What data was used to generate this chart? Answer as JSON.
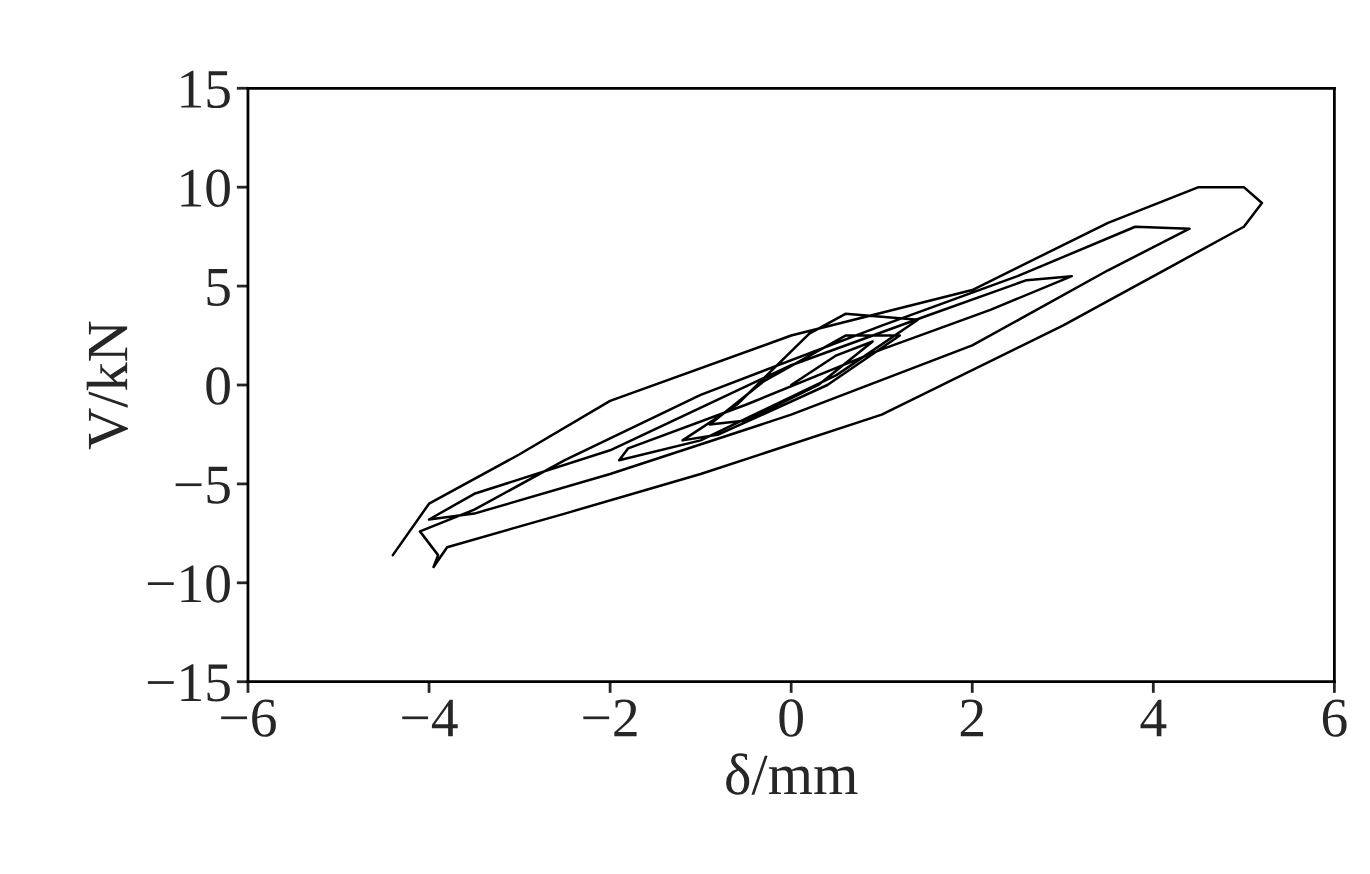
{
  "chart_data": {
    "type": "line",
    "xlabel": "δ/mm",
    "ylabel": "V/kN",
    "xlim": [
      -6,
      6
    ],
    "ylim": [
      -15,
      15
    ],
    "xticks": [
      -6,
      -4,
      -2,
      0,
      2,
      4,
      6
    ],
    "yticks": [
      -15,
      -10,
      -5,
      0,
      5,
      10,
      15
    ],
    "grid": false,
    "legend": false,
    "series": [
      {
        "color": "#000000",
        "x": [
          0,
          0.5,
          0.9,
          0.3,
          -0.5,
          -0.9,
          -0.3,
          0.6,
          1.2,
          0.4,
          -0.8,
          -1.2,
          -0.6,
          0.2,
          0.6,
          1.4,
          0.5,
          -1,
          -1.9,
          -1.8,
          -0.5,
          1,
          2.2,
          3.1,
          2.6,
          1.5,
          0,
          -2,
          -3.5,
          -4,
          -3.5,
          -2,
          0,
          2,
          3.5,
          4.4,
          3.8,
          2.5,
          1,
          -1,
          -2.5,
          -3.5,
          -4.1,
          -3.9,
          -3.95,
          -3.8,
          -2.5,
          -1,
          1,
          3,
          4.2,
          5,
          5.2,
          5,
          4.5,
          3.5,
          2,
          0,
          -2,
          -3,
          -4,
          -4.4
        ],
        "values": [
          0,
          1.5,
          2.2,
          0,
          -1.8,
          -2,
          0.2,
          2.5,
          2.5,
          0,
          -2.5,
          -2.8,
          -1,
          2.6,
          3.6,
          3.3,
          0.5,
          -2.8,
          -3.8,
          -3.2,
          -1,
          1.8,
          3.8,
          5.5,
          5.3,
          3.5,
          1,
          -3.3,
          -5.5,
          -6.8,
          -6.5,
          -4.5,
          -1.5,
          2,
          5.8,
          7.9,
          8,
          5.5,
          3,
          -0.5,
          -3.8,
          -6.3,
          -7.4,
          -8.6,
          -9.2,
          -8.2,
          -6.5,
          -4.5,
          -1.5,
          3,
          6,
          8,
          9.2,
          10,
          10,
          8.2,
          4.8,
          2.5,
          -0.8,
          -3.5,
          -6,
          -8.6
        ]
      }
    ]
  }
}
